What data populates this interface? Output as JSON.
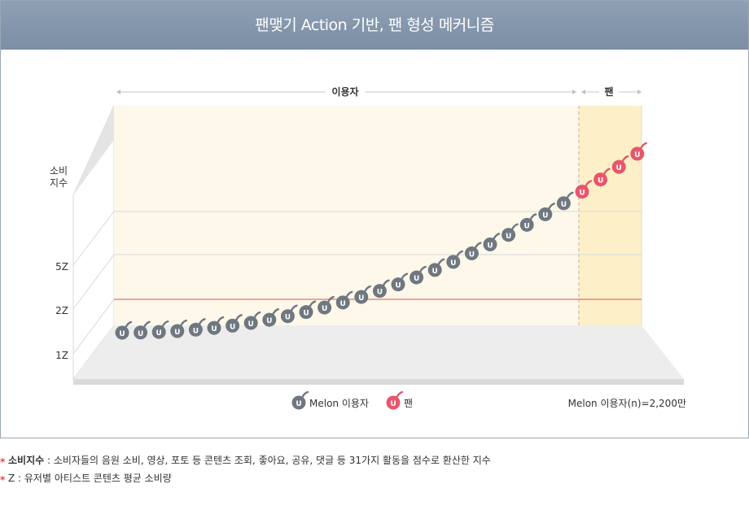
{
  "header": {
    "title": "팬맺기 Action 기반, 팬 형성 메커니즘"
  },
  "chart_data": {
    "type": "scatter",
    "title": "팬맺기 Action 기반, 팬 형성 메커니즘",
    "ylabel": "소비\n지수",
    "y_ticks": [
      "1Z",
      "2Z",
      "5Z"
    ],
    "segments": [
      {
        "label": "이용자",
        "from": 1,
        "to": 25
      },
      {
        "label": "팬",
        "from": 26,
        "to": 29
      }
    ],
    "series": [
      {
        "name": "Melon 이용자",
        "color": "#6f7780",
        "count": 25
      },
      {
        "name": "팬",
        "color": "#e8566b",
        "count": 4
      }
    ],
    "threshold_color": "#d9534f",
    "legend_position": "bottom",
    "sample_note": "Melon 이용자(n)=2,200만",
    "marker_letter": "U"
  },
  "notes": [
    {
      "star": "*",
      "term": "소비지수",
      "text": " : 소비자들의 음원 소비, 영상, 포토 등 콘텐츠 조회, 좋아요, 공유, 댓글 등 31가지 활동을 점수로 환산한 지수"
    },
    {
      "star": "*",
      "term": "",
      "text": "Z : 유저별 아티스트 콘텐츠 평균 소비량"
    }
  ]
}
